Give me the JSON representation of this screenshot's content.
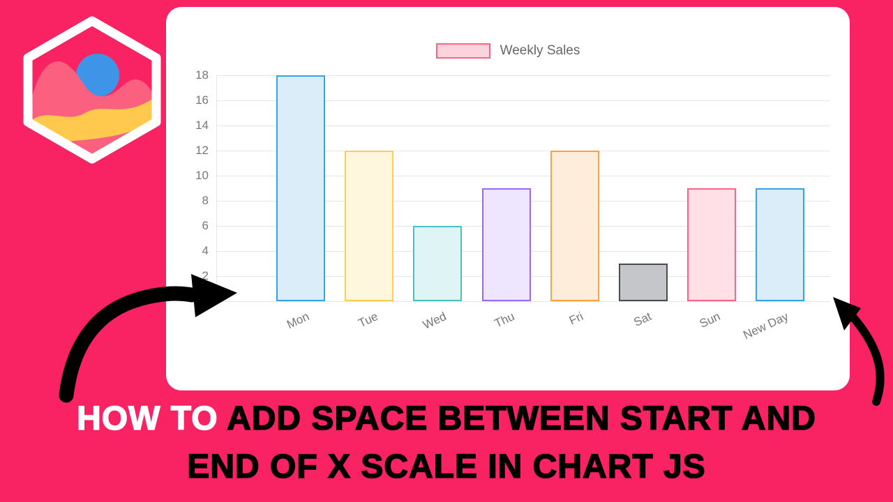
{
  "thumbnail": {
    "background_color": "#F92363",
    "logo": "chartjs-logo"
  },
  "title": {
    "line1_highlight": "HOW TO",
    "line1_rest": " ADD SPACE BETWEEN START AND",
    "line2": "END OF X SCALE IN CHART JS"
  },
  "chart_data": {
    "type": "bar",
    "title": "",
    "legend": {
      "label": "Weekly Sales",
      "position": "top",
      "swatch_fill": "#FBD3DD",
      "swatch_border": "#FF6384"
    },
    "categories": [
      "Mon",
      "Tue",
      "Wed",
      "Thu",
      "Fri",
      "Sat",
      "Sun",
      "New Day"
    ],
    "series": [
      {
        "name": "Weekly Sales",
        "values": [
          18,
          12,
          6,
          9,
          12,
          3,
          9,
          9
        ]
      }
    ],
    "bar_styles": [
      {
        "fill": "#DCEDFA",
        "border": "#36A2EB"
      },
      {
        "fill": "#FFF6DE",
        "border": "#FFCD56"
      },
      {
        "fill": "#DFF4F4",
        "border": "#4BC0C0"
      },
      {
        "fill": "#EEE6FF",
        "border": "#9966FF"
      },
      {
        "fill": "#FFEDDC",
        "border": "#FF9F40"
      },
      {
        "fill": "#C4C6C9",
        "border": "#4A4B4D"
      },
      {
        "fill": "#FFE0E7",
        "border": "#FF6384"
      },
      {
        "fill": "#DCEDFA",
        "border": "#36A2EB"
      }
    ],
    "ylim": [
      0,
      18
    ],
    "yticks": [
      0,
      2,
      4,
      6,
      8,
      10,
      12,
      14,
      16,
      18
    ],
    "grid": true,
    "x_label_rotation": -25,
    "axis_text_color": "#777777",
    "grid_color": "#E6E6E6",
    "xlabel": "",
    "ylabel": ""
  }
}
